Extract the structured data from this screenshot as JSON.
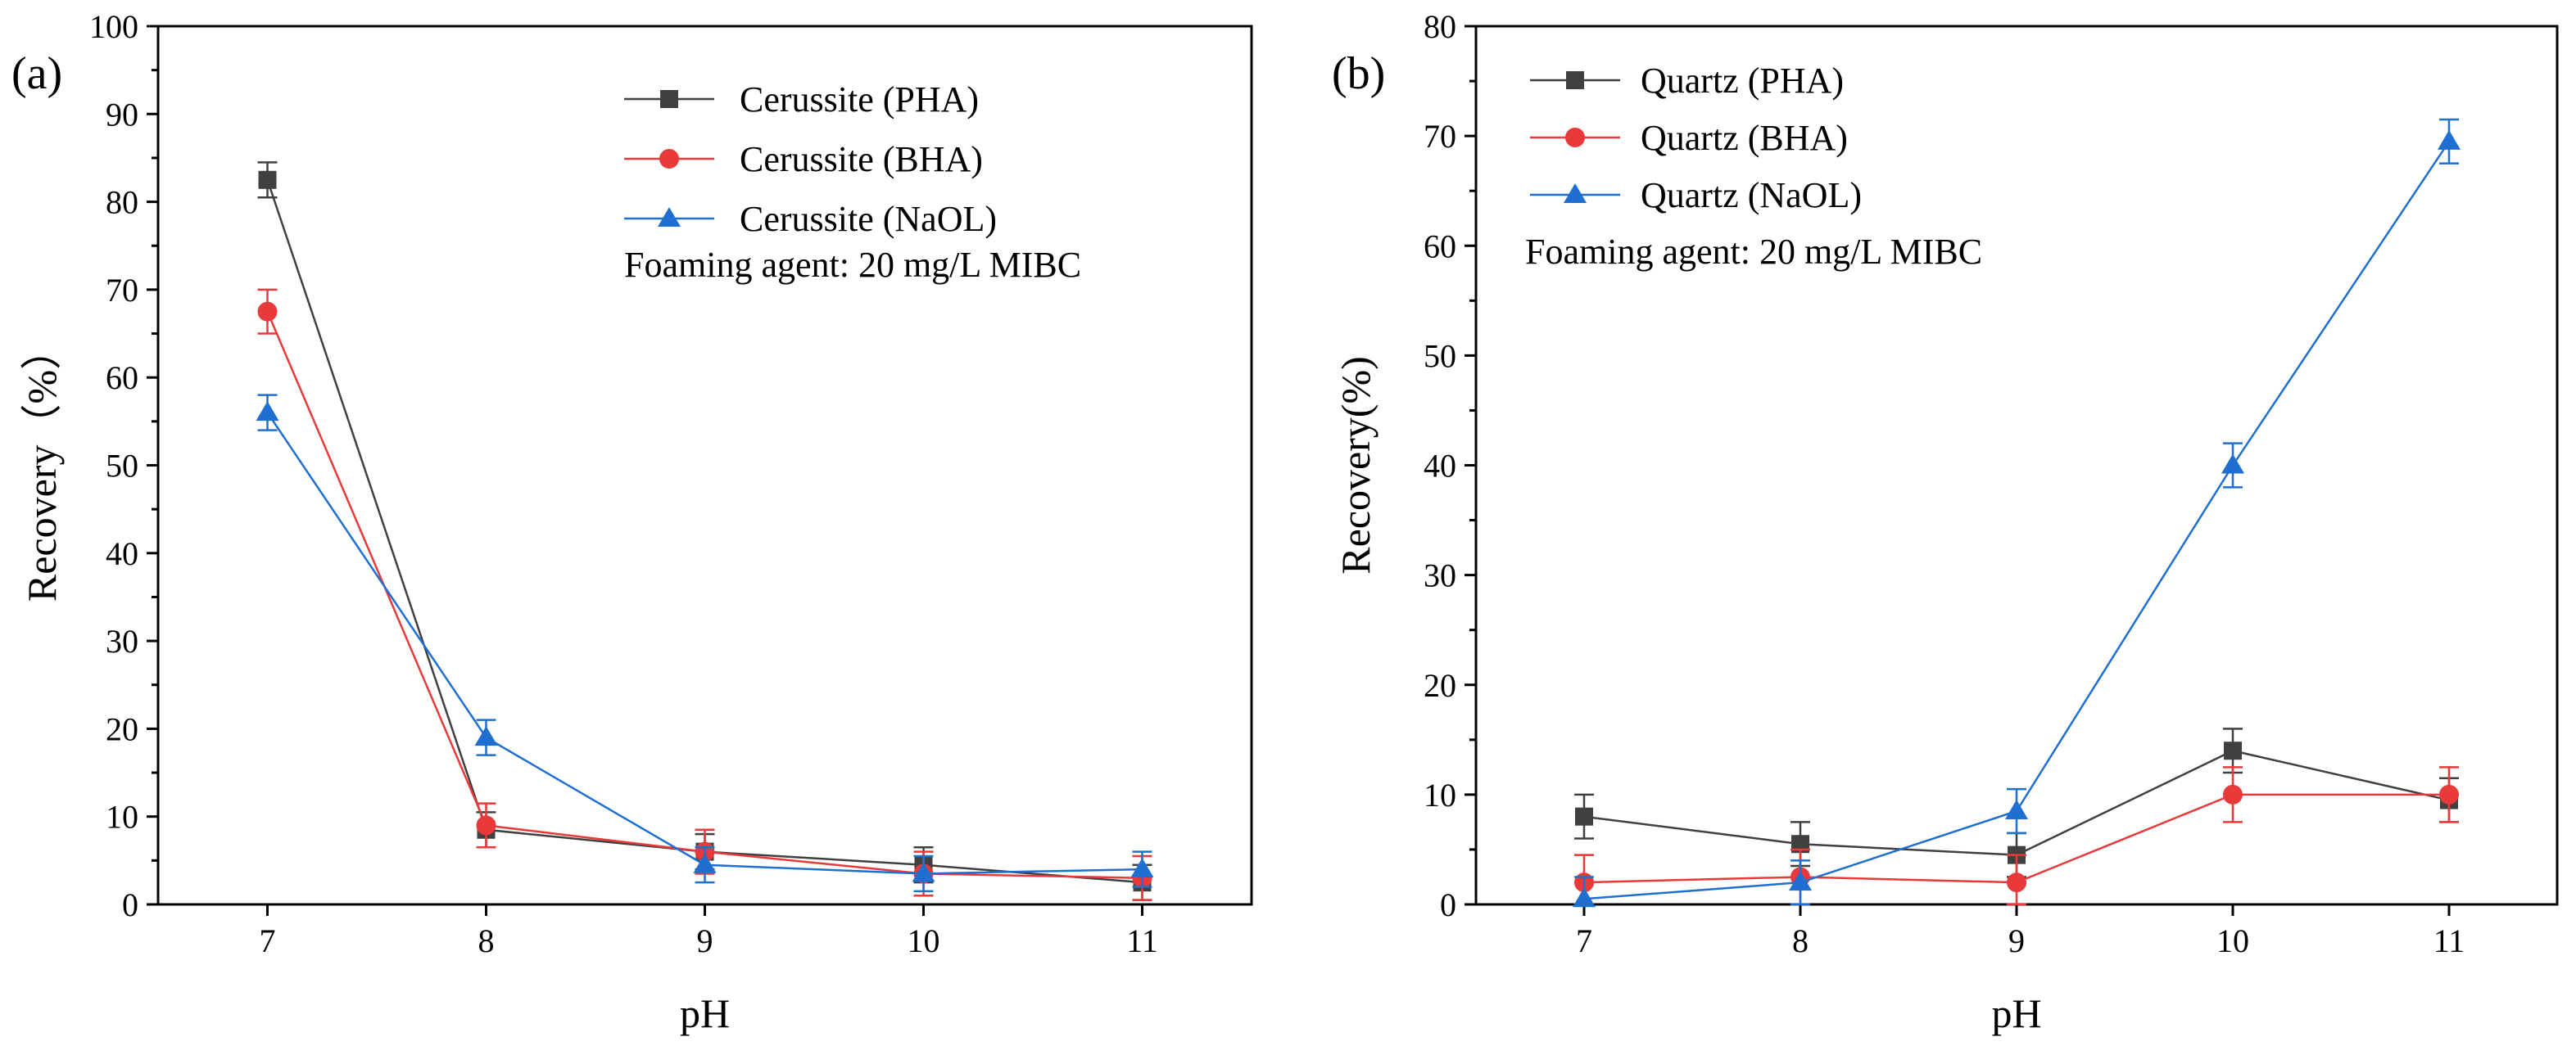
{
  "chart_data": [
    {
      "type": "line",
      "panel_label": "(a)",
      "xlabel": "pH",
      "ylabel": "Recovery（%）",
      "x": [
        7,
        8,
        9,
        10,
        11
      ],
      "xticks": [
        "7",
        "8",
        "9",
        "10",
        "11"
      ],
      "xlim": [
        6.5,
        11.5
      ],
      "ylim": [
        0,
        100
      ],
      "yticks": [
        "0",
        "10",
        "20",
        "30",
        "40",
        "50",
        "60",
        "70",
        "80",
        "90",
        "100"
      ],
      "annotation": "Foaming agent: 20 mg/L MIBC",
      "legend_position": "top-right",
      "series": [
        {
          "name": "Cerussite (PHA)",
          "marker": "square",
          "color": "#404040",
          "values": [
            82.5,
            8.5,
            6,
            4.5,
            2.5
          ],
          "errors": [
            2,
            2,
            2,
            2,
            2
          ]
        },
        {
          "name": "Cerussite (BHA)",
          "marker": "circle",
          "color": "#e8393b",
          "values": [
            67.5,
            9,
            6,
            3.5,
            3
          ],
          "errors": [
            2.5,
            2.5,
            2.5,
            2.5,
            2.5
          ]
        },
        {
          "name": "Cerussite (NaOL)",
          "marker": "triangle",
          "color": "#1f6fd1",
          "values": [
            56,
            19,
            4.5,
            3.5,
            4
          ],
          "errors": [
            2,
            2,
            2,
            2,
            2
          ]
        }
      ]
    },
    {
      "type": "line",
      "panel_label": "(b)",
      "xlabel": "pH",
      "ylabel": "Recovery(%)",
      "x": [
        7,
        8,
        9,
        10,
        11
      ],
      "xticks": [
        "7",
        "8",
        "9",
        "10",
        "11"
      ],
      "xlim": [
        6.5,
        11.5
      ],
      "ylim": [
        0,
        80
      ],
      "yticks": [
        "0",
        "10",
        "20",
        "30",
        "40",
        "50",
        "60",
        "70",
        "80"
      ],
      "annotation": "Foaming agent: 20 mg/L MIBC",
      "legend_position": "top-left",
      "series": [
        {
          "name": "Quartz (PHA)",
          "marker": "square",
          "color": "#404040",
          "values": [
            8,
            5.5,
            4.5,
            14,
            9.5
          ],
          "errors": [
            2,
            2,
            2,
            2,
            2
          ]
        },
        {
          "name": "Quartz (BHA)",
          "marker": "circle",
          "color": "#e8393b",
          "values": [
            2,
            2.5,
            2,
            10,
            10
          ],
          "errors": [
            2.5,
            2.5,
            2.5,
            2.5,
            2.5
          ]
        },
        {
          "name": "Quartz (NaOL)",
          "marker": "triangle",
          "color": "#1f6fd1",
          "values": [
            0.5,
            2,
            8.5,
            40,
            69.5
          ],
          "errors": [
            2,
            2,
            2,
            2,
            2
          ]
        }
      ]
    }
  ]
}
